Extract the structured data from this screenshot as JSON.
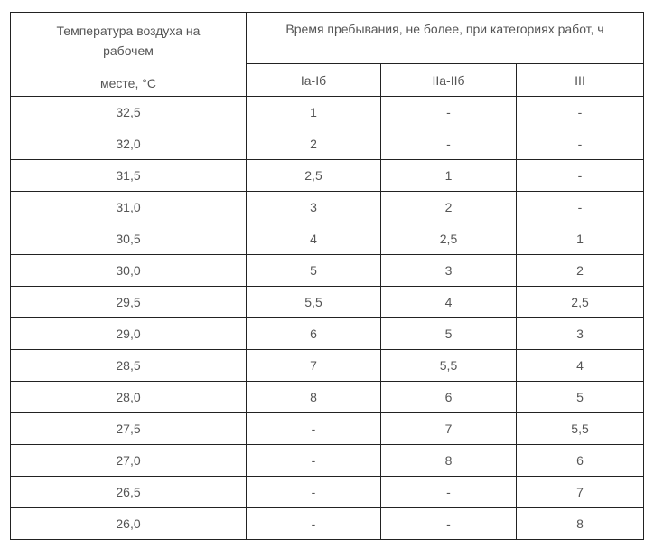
{
  "header": {
    "temp_line1": "Температура воздуха на",
    "temp_line2": "рабочем",
    "temp_line3": "месте, °C",
    "time_title": "Время пребывания, не более, при категориях работ, ч",
    "categories": [
      "Ia-Iб",
      "IIa-IIб",
      "III"
    ]
  },
  "rows": [
    [
      "32,5",
      "1",
      "-",
      "-"
    ],
    [
      "32,0",
      "2",
      "-",
      "-"
    ],
    [
      "31,5",
      "2,5",
      "1",
      "-"
    ],
    [
      "31,0",
      "3",
      "2",
      "-"
    ],
    [
      "30,5",
      "4",
      "2,5",
      "1"
    ],
    [
      "30,0",
      "5",
      "3",
      "2"
    ],
    [
      "29,5",
      "5,5",
      "4",
      "2,5"
    ],
    [
      "29,0",
      "6",
      "5",
      "3"
    ],
    [
      "28,5",
      "7",
      "5,5",
      "4"
    ],
    [
      "28,0",
      "8",
      "6",
      "5"
    ],
    [
      "27,5",
      "-",
      "7",
      "5,5"
    ],
    [
      "27,0",
      "-",
      "8",
      "6"
    ],
    [
      "26,5",
      "-",
      "-",
      "7"
    ],
    [
      "26,0",
      "-",
      "-",
      "8"
    ]
  ]
}
